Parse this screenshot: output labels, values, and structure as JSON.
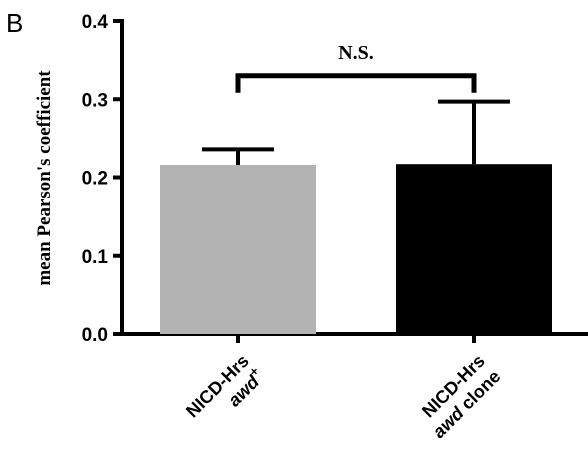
{
  "panel_label": "B",
  "chart_data": {
    "type": "bar",
    "categories": [
      {
        "line1": "NICD-Hrs",
        "line2_italic": "awd",
        "line2_sup": "+",
        "line2_tail": ""
      },
      {
        "line1": "NICD-Hrs",
        "line2_italic": "awd",
        "line2_sup": "",
        "line2_tail": " clone"
      }
    ],
    "values": [
      0.216,
      0.217
    ],
    "errors": [
      0.02,
      0.08
    ],
    "bar_colors": [
      "#b3b3b3",
      "#000000"
    ],
    "ylabel": "mean Pearson's coefficient",
    "ylim": [
      0.0,
      0.4
    ],
    "yticks": [
      "0.0",
      "0.1",
      "0.2",
      "0.3",
      "0.4"
    ],
    "significance": {
      "label": "N.S.",
      "y": 0.33
    },
    "grid": false
  }
}
